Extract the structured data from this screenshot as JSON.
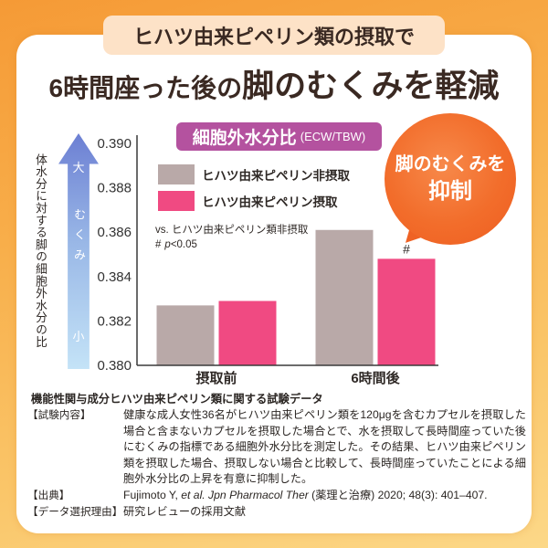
{
  "header": {
    "lead": "ヒハツ由来ピペリン類の摂取で",
    "title_part1": "6時間座った後の",
    "title_part2": "脚のむくみを軽減"
  },
  "chart_data": {
    "type": "bar",
    "title": "細胞外水分比",
    "title_unit": "(ECW/TBW)",
    "ylabel": "体水分に対する脚の細胞外水分の比",
    "categories": [
      "摂取前",
      "6時間後"
    ],
    "series": [
      {
        "name": "ヒハツ由来ピペリン非摂取",
        "values": [
          0.3827,
          0.3861
        ],
        "color": "#b9a9a8"
      },
      {
        "name": "ヒハツ由来ピペリン摂取",
        "values": [
          0.3829,
          0.3848
        ],
        "color": "#f04a82"
      }
    ],
    "ylim": [
      0.38,
      0.39
    ],
    "yticks": [
      0.38,
      0.382,
      0.384,
      0.386,
      0.388,
      0.39
    ],
    "ytick_labels": [
      "0.380",
      "0.382",
      "0.384",
      "0.386",
      "0.388",
      "0.390"
    ],
    "grid": false,
    "legend": "top-left",
    "significance": {
      "comparison": "vs. ヒハツ由来ピペリン類非摂取",
      "mark": "#",
      "p_symbol": "p",
      "threshold": "<0.05"
    },
    "bar_marks": [
      {
        "series": 1,
        "category": 1,
        "text": "#"
      }
    ]
  },
  "y_indicator": {
    "high": "大",
    "label": "むくみ",
    "low": "小"
  },
  "callout": {
    "line1": "脚のむくみを",
    "line2": "抑制"
  },
  "study": {
    "heading": "機能性関与成分ヒハツ由来ピペリン類に関する試験データ",
    "content_label": "【試験内容】",
    "content_text": "健康な成人女性36名がヒハツ由来ピペリン類を120μgを含むカプセルを摂取した場合と含まないカプセルを摂取した場合とで、水を摂取して長時間座っていた後にむくみの指標である細胞外水分比を測定した。その結果、ヒハツ由来ピペリン類を摂取した場合、摂取しない場合と比較して、長時間座っていたことによる細胞外水分比の上昇を有意に抑制した。",
    "source_label": "【出典】",
    "source_author": "Fujimoto Y, ",
    "source_journal": "et al. Jpn Pharmacol Ther",
    "source_rest": " (薬理と治療) 2020; 48(3): 401–407.",
    "reason_label": "【データ選択理由】",
    "reason_text": "研究レビューの採用文献"
  },
  "theme": {
    "chart_title_bg": "#b4529f",
    "callout_orange": "#f26d2b",
    "lead_bg": "#fde2c7"
  }
}
